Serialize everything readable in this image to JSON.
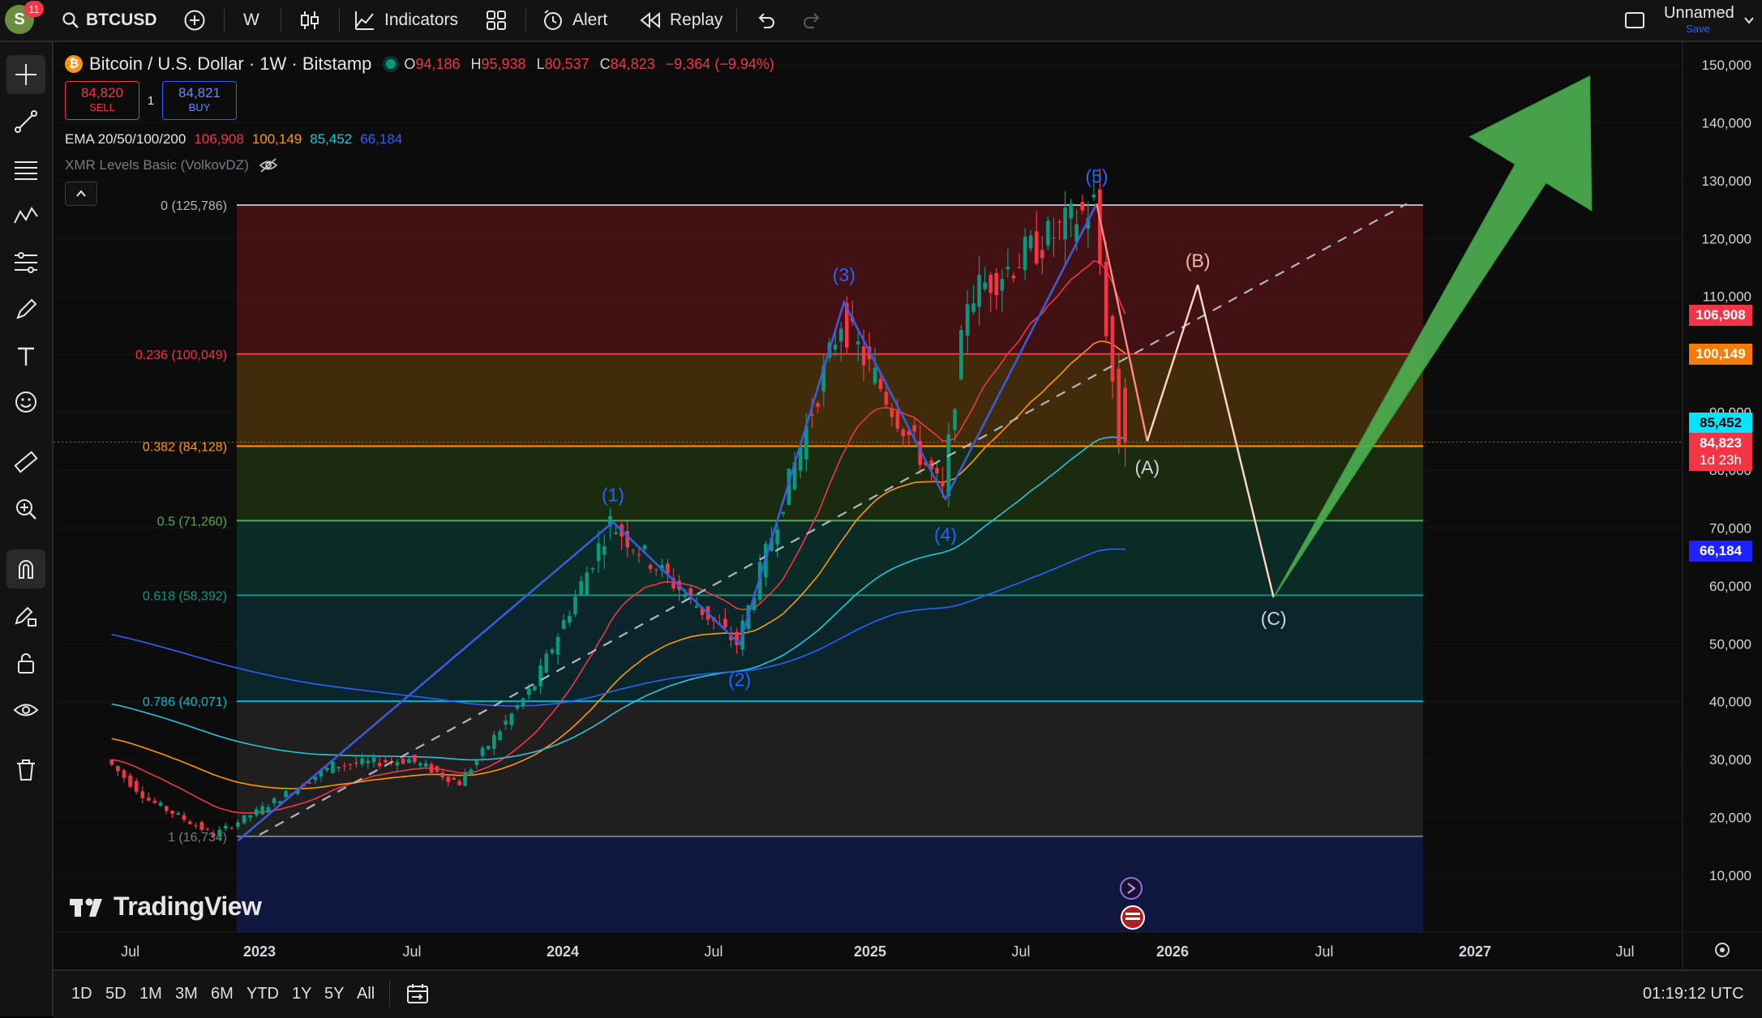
{
  "topbar": {
    "avatar_letter": "S",
    "notification_count": "11",
    "symbol": "BTCUSD",
    "interval": "W",
    "indicators_label": "Indicators",
    "alert_label": "Alert",
    "replay_label": "Replay",
    "layout_name": "Unnamed",
    "save_label": "Save"
  },
  "legend": {
    "title": "Bitcoin / U.S. Dollar · 1W · Bitstamp",
    "open_label": "O",
    "open": "94,186",
    "high_label": "H",
    "high": "95,938",
    "low_label": "L",
    "low": "80,537",
    "close_label": "C",
    "close": "84,823",
    "change": "−9,364 (−9.94%)",
    "sell_price": "84,820",
    "sell_label": "SELL",
    "spread": "1",
    "buy_price": "84,821",
    "buy_label": "BUY",
    "ema_label": "EMA 20/50/100/200",
    "ema20": "106,908",
    "ema50": "100,149",
    "ema100": "85,452",
    "ema200": "66,184",
    "indicator2": "XMR Levels Basic (VolkovDZ)"
  },
  "fib_levels": [
    {
      "label": "0 (125,786)",
      "price": 125786,
      "color": "#b2b5be"
    },
    {
      "label": "0.236 (100,049)",
      "price": 100049,
      "color": "#f23645"
    },
    {
      "label": "0.382 (84,128)",
      "price": 84128,
      "color": "#ff9800"
    },
    {
      "label": "0.5 (71,260)",
      "price": 71260,
      "color": "#4caf50"
    },
    {
      "label": "0.618 (58,392)",
      "price": 58392,
      "color": "#089981"
    },
    {
      "label": "0.786 (40,071)",
      "price": 40071,
      "color": "#00bcd4"
    },
    {
      "label": "1 (16,734)",
      "price": 16734,
      "color": "#787b86"
    }
  ],
  "wave_labels": [
    {
      "text": "(1)",
      "color": "#2962ff"
    },
    {
      "text": "(2)",
      "color": "#2962ff"
    },
    {
      "text": "(3)",
      "color": "#2962ff"
    },
    {
      "text": "(4)",
      "color": "#2962ff"
    },
    {
      "text": "(5)",
      "color": "#2962ff"
    },
    {
      "text": "(A)",
      "color": "#d1d4dc"
    },
    {
      "text": "(B)",
      "color": "#f7b8a8"
    },
    {
      "text": "(C)",
      "color": "#d1d4dc"
    }
  ],
  "price_axis": {
    "ticks": [
      "150,000",
      "140,000",
      "130,000",
      "120,000",
      "110,000",
      "100,000",
      "90,000",
      "80,000",
      "70,000",
      "60,000",
      "50,000",
      "40,000",
      "30,000",
      "20,000",
      "10,000"
    ],
    "labels": [
      {
        "text": "106,908",
        "bg": "#f23645",
        "color": "#ffffff"
      },
      {
        "text": "100,149",
        "bg": "#f57c00",
        "color": "#ffffff"
      },
      {
        "text": "85,452",
        "bg": "#00e5ff",
        "color": "#000000"
      },
      {
        "text": "84,823",
        "bg": "#f23645",
        "color": "#ffffff"
      },
      {
        "text": "1d 23h",
        "bg": "#f23645",
        "color": "#ffffff"
      },
      {
        "text": "66,184",
        "bg": "#1e22ff",
        "color": "#ffffff"
      }
    ]
  },
  "time_axis": {
    "ticks": [
      "Jul",
      "2023",
      "Jul",
      "2024",
      "Jul",
      "2025",
      "Jul",
      "2026",
      "Jul",
      "2027",
      "Jul"
    ]
  },
  "watermark": "TradingView",
  "bottombar": {
    "ranges": [
      "1D",
      "5D",
      "1M",
      "3M",
      "6M",
      "YTD",
      "1Y",
      "5Y",
      "All"
    ],
    "clock": "01:19:12 UTC"
  },
  "chart_data": {
    "type": "candlestick",
    "symbol": "BTCUSD",
    "interval": "1W",
    "exchange": "Bitstamp",
    "y_range": [
      0,
      155000
    ],
    "x_range": [
      "2022-06",
      "2027-08"
    ],
    "last_bar": {
      "open": 94186,
      "high": 95938,
      "low": 80537,
      "close": 84823
    },
    "price_path_approx": [
      {
        "date": "2022-06",
        "price": 30000
      },
      {
        "date": "2022-08",
        "price": 23000
      },
      {
        "date": "2022-11",
        "price": 17000
      },
      {
        "date": "2023-01",
        "price": 21000
      },
      {
        "date": "2023-04",
        "price": 29000
      },
      {
        "date": "2023-07",
        "price": 30000
      },
      {
        "date": "2023-09",
        "price": 26000
      },
      {
        "date": "2023-12",
        "price": 43000
      },
      {
        "date": "2024-03",
        "price": 71000
      },
      {
        "date": "2024-08",
        "price": 50000
      },
      {
        "date": "2024-12",
        "price": 106000
      },
      {
        "date": "2025-04",
        "price": 76000
      },
      {
        "date": "2025-05",
        "price": 110000
      },
      {
        "date": "2025-10",
        "price": 125786
      },
      {
        "date": "2025-11",
        "price": 84823
      }
    ],
    "ema": [
      {
        "name": "EMA 20",
        "value": 106908,
        "color": "#f23645"
      },
      {
        "name": "EMA 50",
        "value": 100149,
        "color": "#ff9800"
      },
      {
        "name": "EMA 100",
        "value": 85452,
        "color": "#26c6da"
      },
      {
        "name": "EMA 200",
        "value": 66184,
        "color": "#2962ff"
      }
    ],
    "elliott_waves": [
      {
        "label": "(1)",
        "date": "2024-03",
        "price": 71000
      },
      {
        "label": "(2)",
        "date": "2024-08",
        "price": 50000
      },
      {
        "label": "(3)",
        "date": "2024-12",
        "price": 109000
      },
      {
        "label": "(4)",
        "date": "2025-04",
        "price": 75000
      },
      {
        "label": "(5)",
        "date": "2025-10",
        "price": 126000
      }
    ],
    "projection": [
      {
        "label": "(A)",
        "date": "2025-12",
        "price": 85000
      },
      {
        "label": "(B)",
        "date": "2026-02",
        "price": 112000
      },
      {
        "label": "(C)",
        "date": "2026-05",
        "price": 58000
      },
      {
        "label": "arrow",
        "date": "2027-05",
        "price": 148000
      }
    ]
  }
}
